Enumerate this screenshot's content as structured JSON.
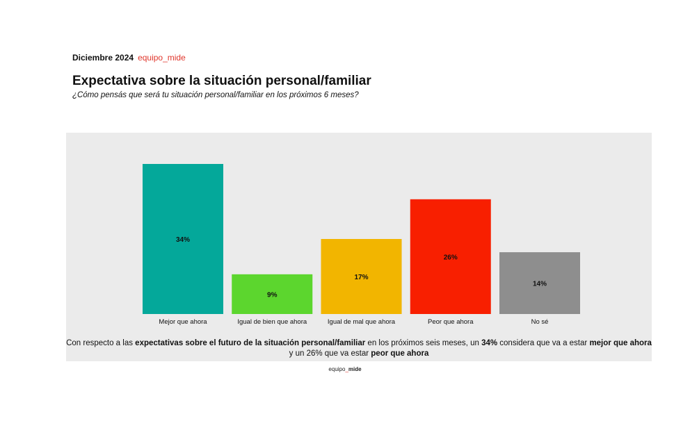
{
  "header": {
    "date": "Diciembre 2024",
    "brand": "equipo_mide"
  },
  "title": "Expectativa sobre la situación personal/familiar",
  "subtitle": "¿Cómo pensás que será tu situación personal/familiar en los próximos 6 meses?",
  "chart_data": {
    "type": "bar",
    "categories": [
      "Mejor que ahora",
      "Igual de bien que ahora",
      "Igual de mal que ahora",
      "Peor que ahora",
      "No sé"
    ],
    "values": [
      34,
      9,
      17,
      26,
      14
    ],
    "labels": [
      "34%",
      "9%",
      "17%",
      "26%",
      "14%"
    ],
    "colors": [
      "#04a89a",
      "#5cd62e",
      "#f2b500",
      "#f81f00",
      "#8e8e8e"
    ],
    "ylim": [
      0,
      34
    ],
    "grid": false
  },
  "note": {
    "p1": "Con respecto a las ",
    "b1": "expectativas sobre el futuro de la situación personal/familiar",
    "p2": " en los próximos seis meses, un ",
    "b2": "34%",
    "p3": " considera que va a estar ",
    "b3": "mejor que ahora",
    "p4": " y un 26% que va estar ",
    "b4": "peor que ahora"
  },
  "footer": {
    "part1": "equipo",
    "sep": "_",
    "part2": "mide"
  }
}
